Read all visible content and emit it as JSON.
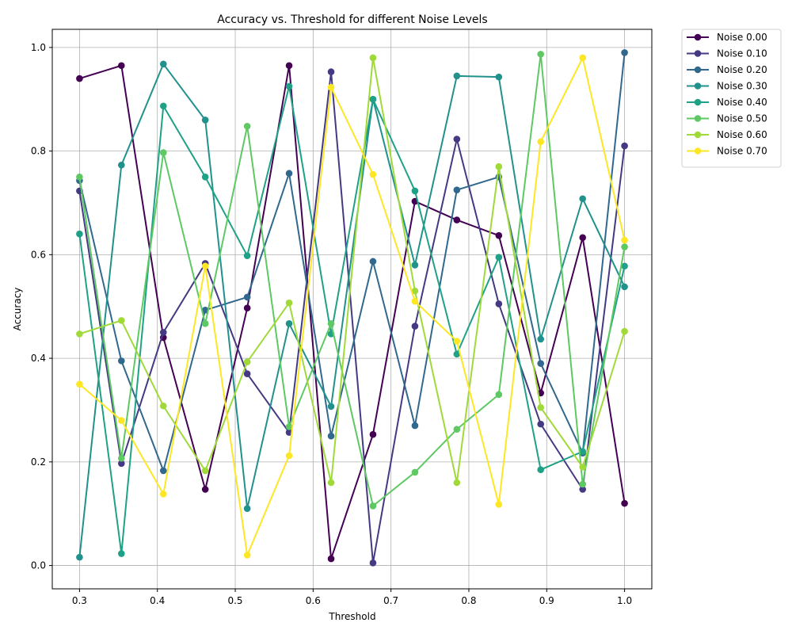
{
  "chart_data": {
    "type": "line",
    "title": "Accuracy vs. Threshold for different Noise Levels",
    "xlabel": "Threshold",
    "ylabel": "Accuracy",
    "xlim": [
      0.265,
      1.035
    ],
    "ylim": [
      -0.045,
      1.035
    ],
    "xticks": [
      0.3,
      0.4,
      0.5,
      0.6,
      0.7,
      0.8,
      0.9,
      1.0
    ],
    "xtick_labels": [
      "0.3",
      "0.4",
      "0.5",
      "0.6",
      "0.7",
      "0.8",
      "0.9",
      "1.0"
    ],
    "yticks": [
      0.0,
      0.2,
      0.4,
      0.6,
      0.8,
      1.0
    ],
    "ytick_labels": [
      "0.0",
      "0.2",
      "0.4",
      "0.6",
      "0.8",
      "1.0"
    ],
    "grid": true,
    "legend_position": "outside-top-right",
    "x": [
      0.3,
      0.3538,
      0.4077,
      0.4615,
      0.5154,
      0.5692,
      0.6231,
      0.6769,
      0.7308,
      0.7846,
      0.8385,
      0.8923,
      0.9462,
      1.0
    ],
    "series": [
      {
        "name": "Noise 0.00",
        "color": "#440154",
        "values": [
          0.94,
          0.965,
          0.44,
          0.147,
          0.497,
          0.965,
          0.013,
          0.253,
          0.703,
          0.667,
          0.637,
          0.333,
          0.633,
          0.12
        ]
      },
      {
        "name": "Noise 0.10",
        "color": "#443983",
        "values": [
          0.723,
          0.197,
          0.45,
          0.583,
          0.37,
          0.257,
          0.953,
          0.005,
          0.462,
          0.823,
          0.505,
          0.273,
          0.147,
          0.81
        ]
      },
      {
        "name": "Noise 0.20",
        "color": "#31688e",
        "values": [
          0.743,
          0.395,
          0.183,
          0.493,
          0.518,
          0.757,
          0.25,
          0.587,
          0.27,
          0.725,
          0.75,
          0.39,
          0.217,
          0.99
        ]
      },
      {
        "name": "Noise 0.30",
        "color": "#21918c",
        "values": [
          0.016,
          0.773,
          0.968,
          0.86,
          0.11,
          0.467,
          0.307,
          0.9,
          0.58,
          0.945,
          0.943,
          0.437,
          0.708,
          0.538
        ]
      },
      {
        "name": "Noise 0.40",
        "color": "#1fa187",
        "values": [
          0.64,
          0.023,
          0.887,
          0.75,
          0.598,
          0.925,
          0.447,
          0.9,
          0.723,
          0.408,
          0.595,
          0.185,
          0.22,
          0.578
        ]
      },
      {
        "name": "Noise 0.50",
        "color": "#5ec962",
        "values": [
          0.75,
          0.207,
          0.797,
          0.467,
          0.848,
          0.268,
          0.467,
          0.115,
          0.18,
          0.263,
          0.33,
          0.987,
          0.157,
          0.615
        ]
      },
      {
        "name": "Noise 0.60",
        "color": "#a0da39",
        "values": [
          0.447,
          0.473,
          0.308,
          0.183,
          0.393,
          0.507,
          0.16,
          0.98,
          0.53,
          0.16,
          0.77,
          0.305,
          0.19,
          0.452
        ]
      },
      {
        "name": "Noise 0.70",
        "color": "#fde725",
        "values": [
          0.35,
          0.28,
          0.138,
          0.578,
          0.02,
          0.212,
          0.923,
          0.755,
          0.51,
          0.433,
          0.118,
          0.818,
          0.98,
          0.628
        ]
      }
    ]
  }
}
